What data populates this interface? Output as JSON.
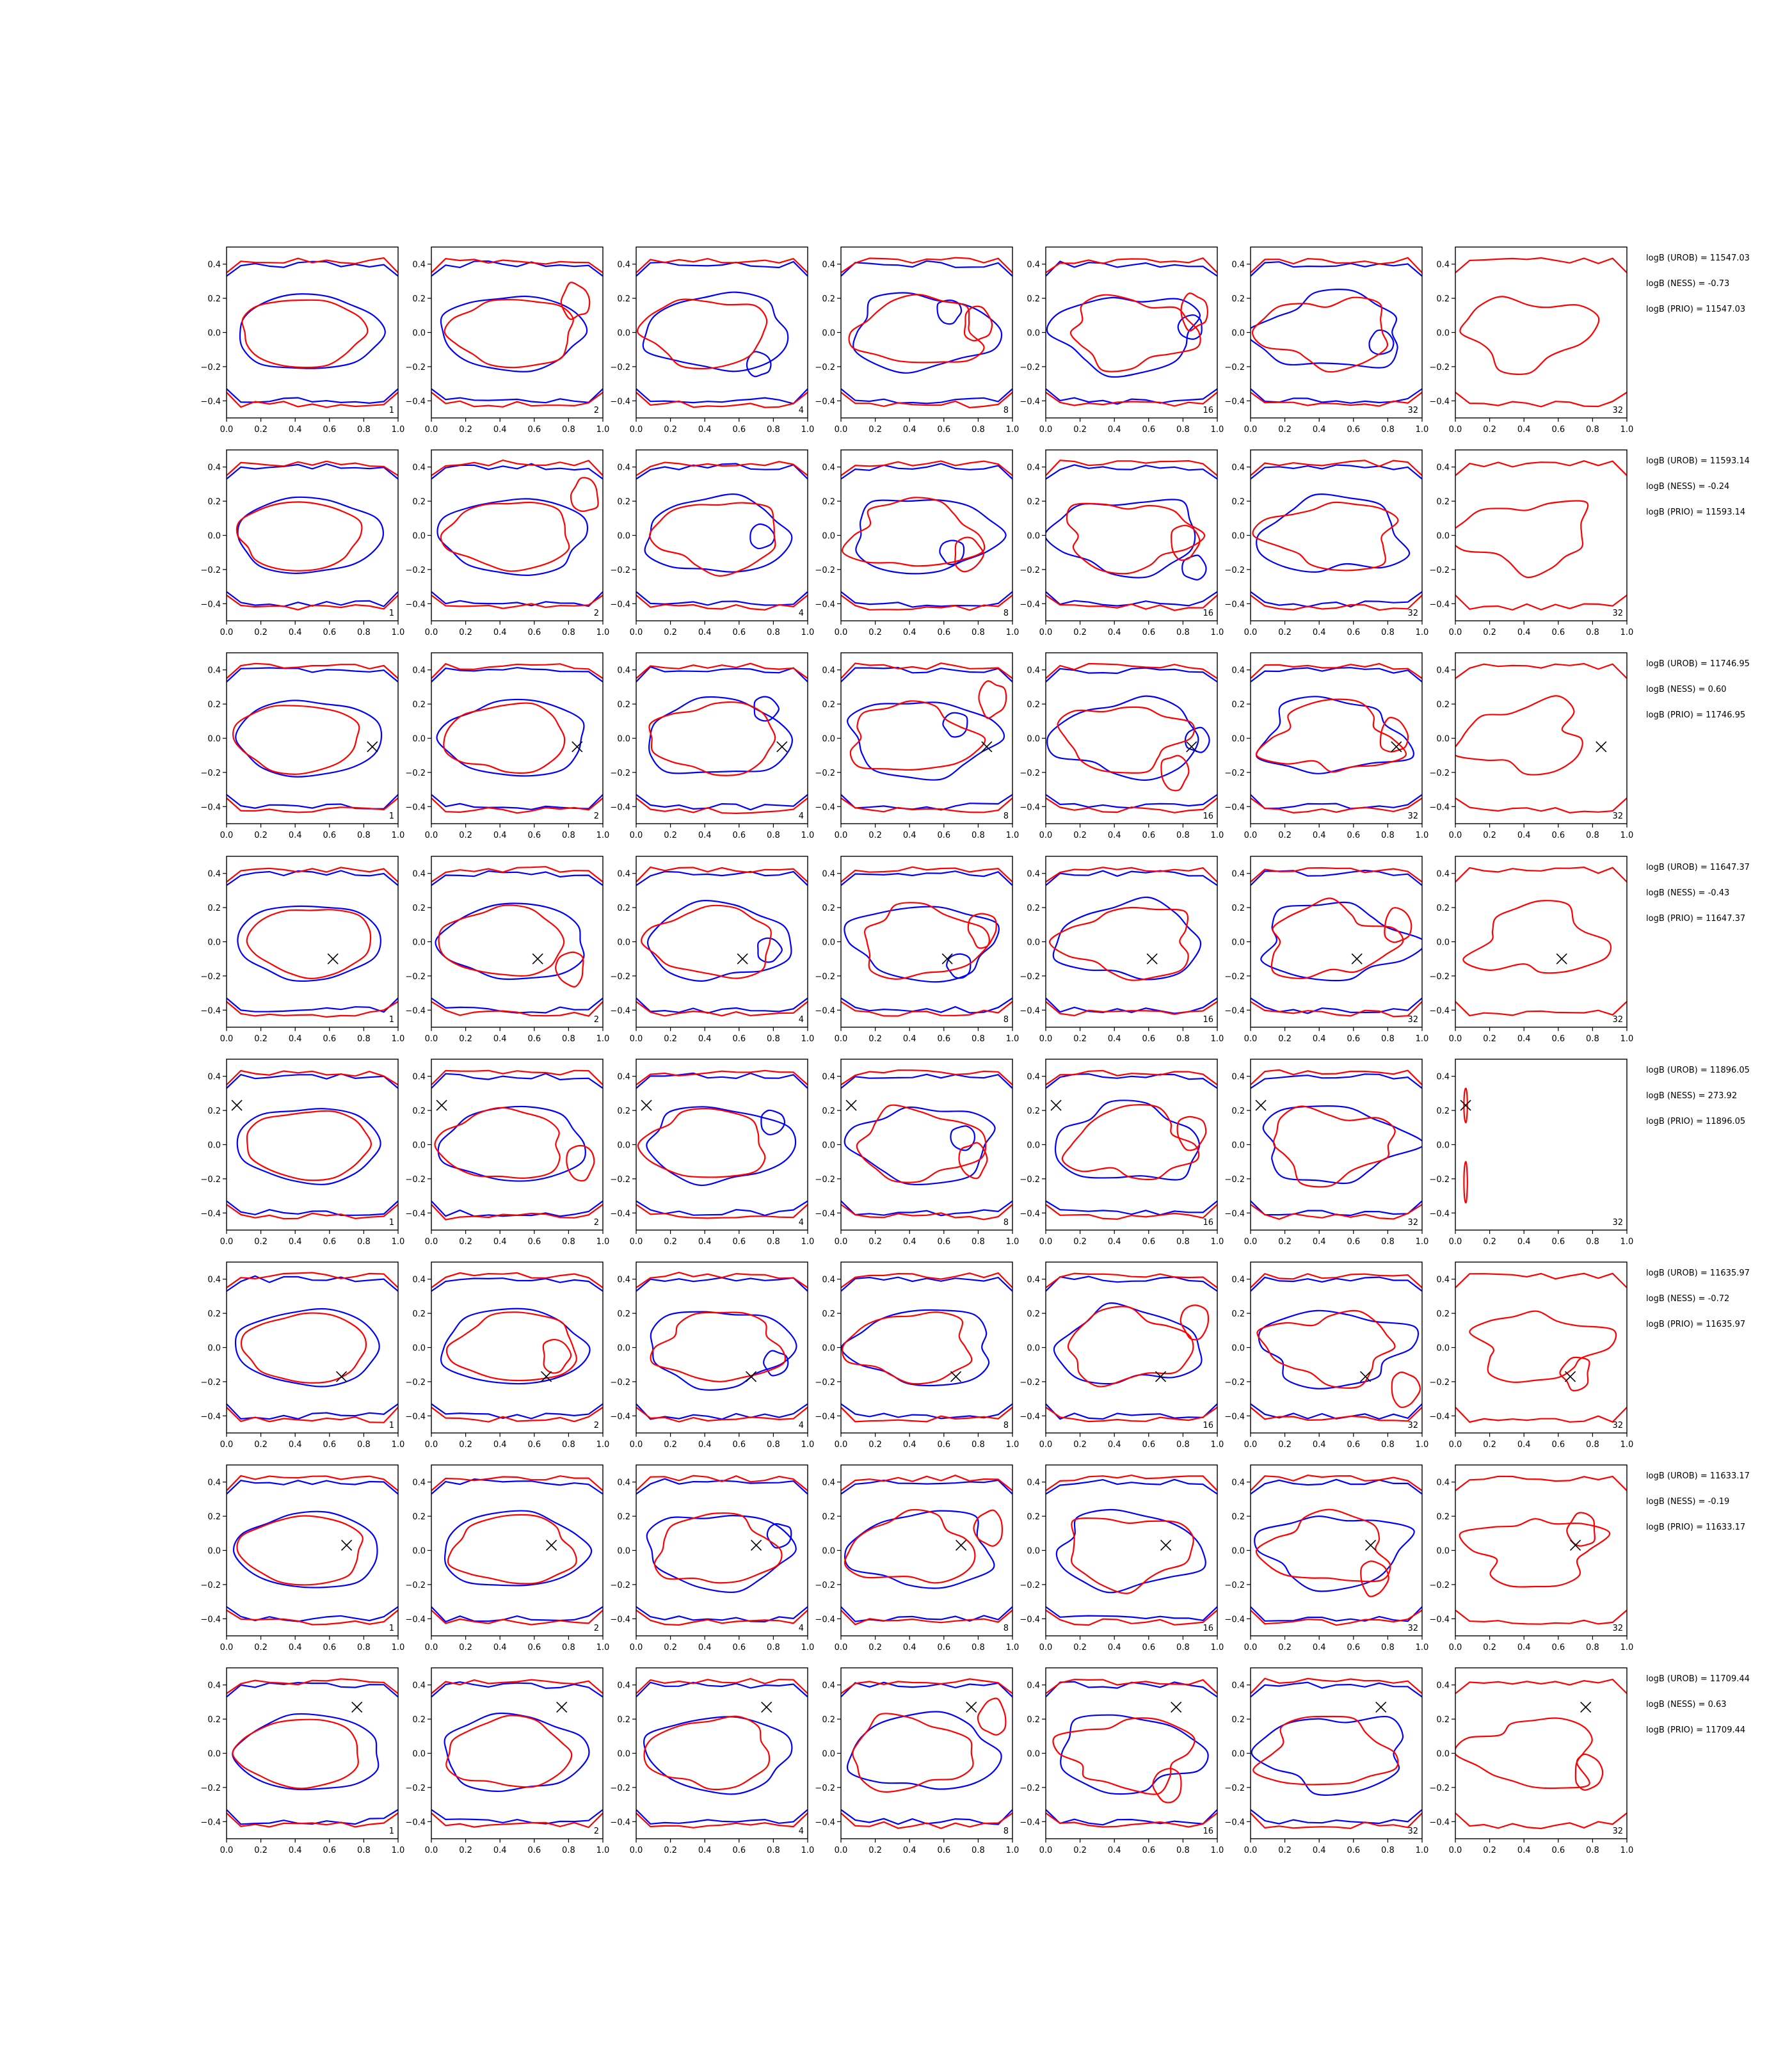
{
  "chart_data": {
    "type": "contour",
    "layout": {
      "rows": 8,
      "cols": 7
    },
    "panel_numbers": [
      "1",
      "2",
      "4",
      "8",
      "16",
      "32",
      "32"
    ],
    "xlim": [
      0.0,
      1.0
    ],
    "ylim": [
      -0.5,
      0.5
    ],
    "xticks": [
      0.0,
      0.2,
      0.4,
      0.6,
      0.8,
      1.0
    ],
    "yticks": [
      -0.4,
      -0.2,
      0.0,
      0.2,
      0.4
    ],
    "xtick_labels": [
      "0.0",
      "0.2",
      "0.4",
      "0.6",
      "0.8",
      "1.0"
    ],
    "ytick_labels": [
      "−0.4",
      "−0.2",
      "0.0",
      "0.2",
      "0.4"
    ],
    "colors": {
      "contour_a": "#0000ff",
      "contour_b": "#ff0000",
      "marker": "#000000"
    },
    "marker_symbol": "×",
    "rows": [
      {
        "marker": null,
        "last_panel_blank": false,
        "annotations": [
          "logB (UROB) = 11547.03",
          "logB (NESS) = -0.73",
          "logB (PRIO) = 11547.03"
        ]
      },
      {
        "marker": null,
        "last_panel_blank": false,
        "annotations": [
          "logB (UROB) = 11593.14",
          "logB (NESS) = -0.24",
          "logB (PRIO) = 11593.14"
        ]
      },
      {
        "marker": [
          0.85,
          -0.05
        ],
        "last_panel_blank": false,
        "annotations": [
          "logB (UROB) = 11746.95",
          "logB (NESS) = 0.60",
          "logB (PRIO) = 11746.95"
        ]
      },
      {
        "marker": [
          0.62,
          -0.1
        ],
        "last_panel_blank": false,
        "annotations": [
          "logB (UROB) = 11647.37",
          "logB (NESS) = -0.43",
          "logB (PRIO) = 11647.37"
        ]
      },
      {
        "marker": [
          0.06,
          0.23
        ],
        "last_panel_blank": true,
        "annotations": [
          "logB (UROB) = 11896.05",
          "logB (NESS) = 273.92",
          "logB (PRIO) = 11896.05"
        ]
      },
      {
        "marker": [
          0.67,
          -0.17
        ],
        "last_panel_blank": false,
        "annotations": [
          "logB (UROB) = 11635.97",
          "logB (NESS) = -0.72",
          "logB (PRIO) = 11635.97"
        ]
      },
      {
        "marker": [
          0.7,
          0.03
        ],
        "last_panel_blank": false,
        "annotations": [
          "logB (UROB) = 11633.17",
          "logB (NESS) = -0.19",
          "logB (PRIO) = 11633.17"
        ]
      },
      {
        "marker": [
          0.76,
          0.27
        ],
        "last_panel_blank": false,
        "annotations": [
          "logB (UROB) = 11709.44",
          "logB (NESS) = 0.63",
          "logB (PRIO) = 11709.44"
        ]
      }
    ]
  }
}
